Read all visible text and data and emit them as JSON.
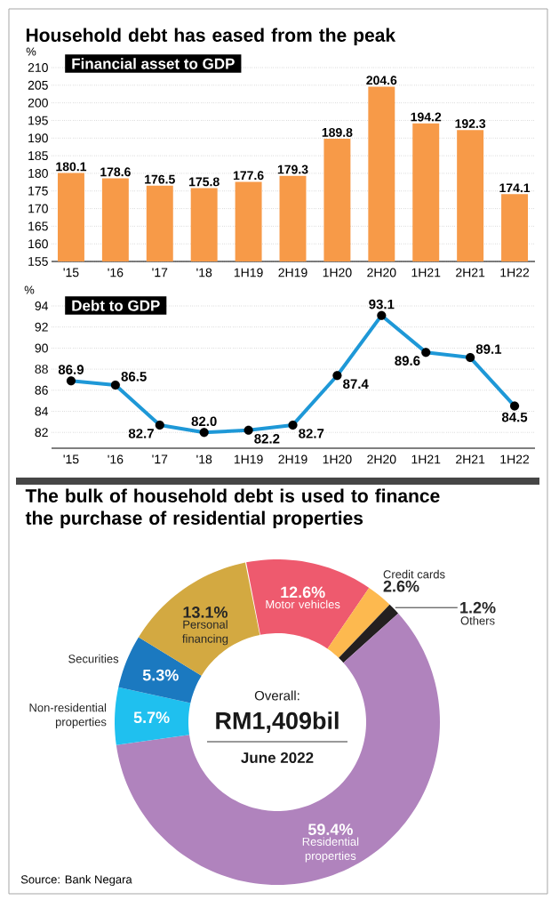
{
  "chart_data": [
    {
      "type": "bar",
      "title": "Household debt has eased from the peak",
      "subtitle": "Financial asset to GDP",
      "ylabel": "%",
      "categories": [
        "'15",
        "'16",
        "'17",
        "'18",
        "1H19",
        "2H19",
        "1H20",
        "2H20",
        "1H21",
        "2H21",
        "1H22"
      ],
      "values": [
        180.1,
        178.6,
        176.5,
        175.8,
        177.6,
        179.3,
        189.8,
        204.6,
        194.2,
        192.3,
        174.1
      ],
      "value_labels": [
        "180.1",
        "178.6",
        "176.5",
        "175.8",
        "177.6",
        "179.3",
        "189.8",
        "204.6",
        "194.2",
        "192.3",
        "174.1"
      ],
      "color": "#f79a48",
      "ylim": [
        155,
        210
      ],
      "yticks": [
        155,
        160,
        165,
        170,
        175,
        180,
        185,
        190,
        195,
        200,
        205,
        210
      ],
      "grid": "y"
    },
    {
      "type": "line",
      "subtitle": "Debt to GDP",
      "ylabel": "%",
      "categories": [
        "'15",
        "'16",
        "'17",
        "'18",
        "1H19",
        "2H19",
        "1H20",
        "2H20",
        "1H21",
        "2H21",
        "1H22"
      ],
      "values": [
        86.9,
        86.5,
        82.7,
        82.0,
        82.2,
        82.7,
        87.4,
        93.1,
        89.6,
        89.1,
        84.5
      ],
      "value_labels": [
        "86.9",
        "86.5",
        "82.7",
        "82.0",
        "82.2",
        "82.7",
        "87.4",
        "93.1",
        "89.6",
        "89.1",
        "84.5"
      ],
      "color": "#1e98d7",
      "marker": "circle",
      "line_style": "solid",
      "ylim": [
        80.5,
        94
      ],
      "yticks": [
        82,
        84,
        86,
        88,
        90,
        92,
        94
      ],
      "grid": "y"
    },
    {
      "type": "donut",
      "title": "The bulk of household debt is used to finance the purchase of residential properties",
      "categories": [
        "Motor vehicles",
        "Credit cards",
        "Others",
        "Residential properties",
        "Non-residential properties",
        "Securities",
        "Personal financing"
      ],
      "values": [
        12.6,
        2.6,
        1.2,
        59.4,
        5.7,
        5.3,
        13.1
      ],
      "colors": [
        "#ee5a6e",
        "#fdb94f",
        "#231f20",
        "#b083bd",
        "#1fc0ef",
        "#1b79c0",
        "#d3a941"
      ],
      "value_labels": [
        "12.6%",
        "2.6%",
        "1.2%",
        "59.4%",
        "5.7%",
        "5.3%",
        "13.1%"
      ],
      "annotations": [
        "Overall:",
        "RM1,409bil",
        "June 2022",
        "Source: Bank Negara"
      ]
    }
  ]
}
